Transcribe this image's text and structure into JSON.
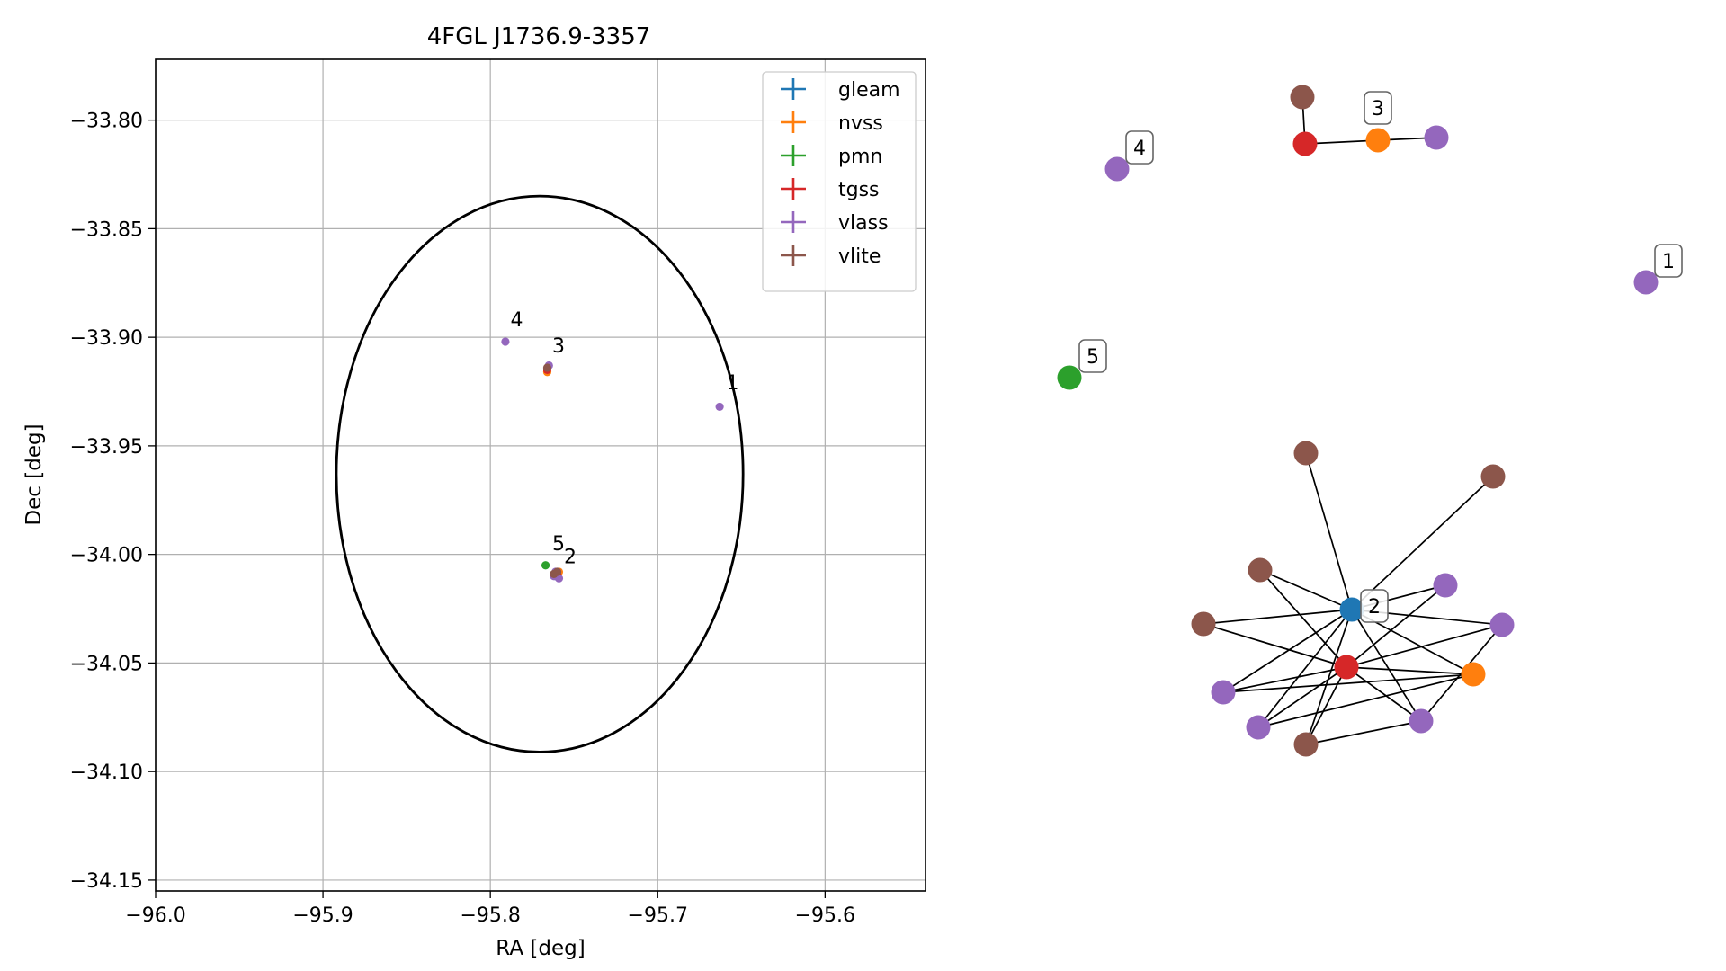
{
  "chart_data": [
    {
      "type": "scatter",
      "title": "4FGL J1736.9-3357",
      "xlabel": "RA [deg]",
      "ylabel": "Dec [deg]",
      "xlim": [
        -96.0,
        -95.54
      ],
      "ylim": [
        -34.155,
        -33.772
      ],
      "xticks": [
        -96.0,
        -95.9,
        -95.8,
        -95.7,
        -95.6
      ],
      "xtick_labels": [
        "−96.0",
        "−95.9",
        "−95.8",
        "−95.7",
        "−95.6"
      ],
      "yticks": [
        -33.8,
        -33.85,
        -33.9,
        -33.95,
        -34.0,
        -34.05,
        -34.1,
        -34.15
      ],
      "ytick_labels": [
        "−33.80",
        "−33.85",
        "−33.90",
        "−33.95",
        "−34.00",
        "−34.05",
        "−34.10",
        "−34.15"
      ],
      "grid": true,
      "legend_position": "top-right",
      "series": [
        {
          "name": "gleam",
          "color": "#1f77b4",
          "points": [
            [
              -95.761,
              -34.01
            ]
          ]
        },
        {
          "name": "nvss",
          "color": "#ff7f0e",
          "points": [
            [
              -95.766,
              -33.916
            ],
            [
              -95.759,
              -34.008
            ]
          ]
        },
        {
          "name": "pmn",
          "color": "#2ca02c",
          "points": [
            [
              -95.767,
              -34.005
            ]
          ]
        },
        {
          "name": "tgss",
          "color": "#d62728",
          "points": [
            [
              -95.766,
              -33.915
            ],
            [
              -95.76,
              -34.009
            ]
          ]
        },
        {
          "name": "vlass",
          "color": "#9467bd",
          "points": [
            [
              -95.663,
              -33.932
            ],
            [
              -95.791,
              -33.902
            ],
            [
              -95.765,
              -33.913
            ],
            [
              -95.762,
              -34.01
            ],
            [
              -95.759,
              -34.011
            ],
            [
              -95.761,
              -34.008
            ]
          ]
        },
        {
          "name": "vlite",
          "color": "#8c564b",
          "points": [
            [
              -95.766,
              -33.914
            ],
            [
              -95.76,
              -34.008
            ],
            [
              -95.762,
              -34.009
            ]
          ]
        }
      ],
      "ellipse": {
        "center": [
          -95.7705,
          -33.963
        ],
        "semi_axis_ra": 0.1215,
        "semi_axis_dec": 0.128,
        "color": "#000000"
      },
      "annotations": [
        {
          "text": "1",
          "x": -95.659,
          "y": -33.924
        },
        {
          "text": "2",
          "x": -95.756,
          "y": -34.004
        },
        {
          "text": "3",
          "x": -95.763,
          "y": -33.907
        },
        {
          "text": "4",
          "x": -95.788,
          "y": -33.895
        },
        {
          "text": "5",
          "x": -95.763,
          "y": -33.998
        }
      ]
    },
    {
      "type": "network",
      "node_colors": {
        "gleam": "#1f77b4",
        "nvss": "#ff7f0e",
        "pmn": "#2ca02c",
        "tgss": "#d62728",
        "vlass": "#9467bd",
        "vlite": "#8c564b"
      },
      "nodes": [
        {
          "id": "c3_vlite",
          "survey": "vlite",
          "group": "3"
        },
        {
          "id": "c3_tgss",
          "survey": "tgss",
          "group": "3"
        },
        {
          "id": "c3_nvss",
          "survey": "nvss",
          "group": "3",
          "label": "3"
        },
        {
          "id": "c3_vlass",
          "survey": "vlass",
          "group": "3"
        },
        {
          "id": "c4_vlass",
          "survey": "vlass",
          "group": "4",
          "label": "4"
        },
        {
          "id": "c1_vlass",
          "survey": "vlass",
          "group": "1",
          "label": "1"
        },
        {
          "id": "c5_pmn",
          "survey": "pmn",
          "group": "5",
          "label": "5"
        },
        {
          "id": "c2_gleam",
          "survey": "gleam",
          "group": "2",
          "label": "2"
        },
        {
          "id": "c2_tgss",
          "survey": "tgss",
          "group": "2"
        },
        {
          "id": "c2_nvss",
          "survey": "nvss",
          "group": "2"
        },
        {
          "id": "c2_vlite_a",
          "survey": "vlite",
          "group": "2"
        },
        {
          "id": "c2_vlite_b",
          "survey": "vlite",
          "group": "2"
        },
        {
          "id": "c2_vlite_c",
          "survey": "vlite",
          "group": "2"
        },
        {
          "id": "c2_vlite_d",
          "survey": "vlite",
          "group": "2"
        },
        {
          "id": "c2_vlite_e",
          "survey": "vlite",
          "group": "2"
        },
        {
          "id": "c2_vlass_a",
          "survey": "vlass",
          "group": "2"
        },
        {
          "id": "c2_vlass_b",
          "survey": "vlass",
          "group": "2"
        },
        {
          "id": "c2_vlass_c",
          "survey": "vlass",
          "group": "2"
        },
        {
          "id": "c2_vlass_d",
          "survey": "vlass",
          "group": "2"
        },
        {
          "id": "c2_vlass_e",
          "survey": "vlass",
          "group": "2"
        }
      ],
      "edges": [
        [
          "c3_vlite",
          "c3_tgss"
        ],
        [
          "c3_tgss",
          "c3_nvss"
        ],
        [
          "c3_nvss",
          "c3_vlass"
        ],
        [
          "c2_gleam",
          "c2_vlite_a"
        ],
        [
          "c2_gleam",
          "c2_vlite_b"
        ],
        [
          "c2_gleam",
          "c2_vlite_c"
        ],
        [
          "c2_gleam",
          "c2_vlite_d"
        ],
        [
          "c2_gleam",
          "c2_vlass_a"
        ],
        [
          "c2_gleam",
          "c2_vlass_b"
        ],
        [
          "c2_gleam",
          "c2_nvss"
        ],
        [
          "c2_gleam",
          "c2_vlass_c"
        ],
        [
          "c2_gleam",
          "c2_vlass_e"
        ],
        [
          "c2_gleam",
          "c2_vlite_e"
        ],
        [
          "c2_gleam",
          "c2_vlass_d"
        ],
        [
          "c2_tgss",
          "c2_vlite_c"
        ],
        [
          "c2_tgss",
          "c2_vlite_d"
        ],
        [
          "c2_tgss",
          "c2_vlass_a"
        ],
        [
          "c2_tgss",
          "c2_vlass_b"
        ],
        [
          "c2_tgss",
          "c2_nvss"
        ],
        [
          "c2_tgss",
          "c2_vlass_c"
        ],
        [
          "c2_tgss",
          "c2_vlass_e"
        ],
        [
          "c2_tgss",
          "c2_vlite_e"
        ],
        [
          "c2_tgss",
          "c2_vlass_d"
        ],
        [
          "c2_vlass_a",
          "c2_nvss"
        ],
        [
          "c2_vlass_b",
          "c2_nvss"
        ],
        [
          "c2_vlass_c",
          "c2_vlass_e"
        ],
        [
          "c2_vlass_c",
          "c2_vlite_e"
        ]
      ]
    }
  ]
}
